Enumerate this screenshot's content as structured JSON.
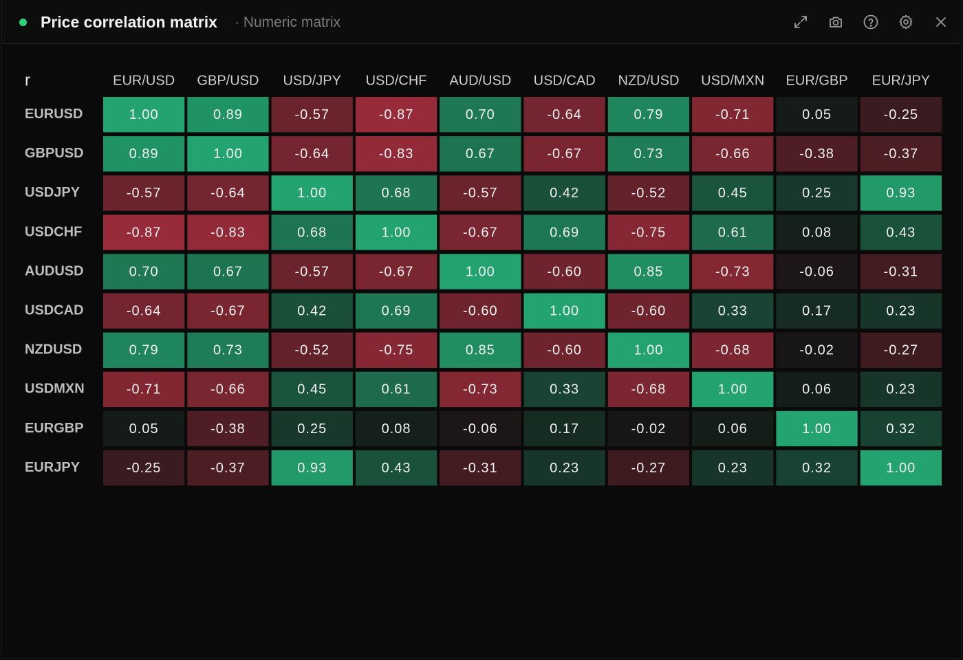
{
  "panel": {
    "title": "Price correlation matrix",
    "subtitle": "· Numeric matrix",
    "status_color": "#2bd47d",
    "toolbar": [
      {
        "icon": "expand-icon"
      },
      {
        "icon": "camera-icon"
      },
      {
        "icon": "help-icon"
      },
      {
        "icon": "gear-icon"
      },
      {
        "icon": "close-icon"
      }
    ]
  },
  "chart_data": {
    "type": "heatmap",
    "corner_label": "r",
    "columns": [
      "EUR/USD",
      "GBP/USD",
      "USD/JPY",
      "USD/CHF",
      "AUD/USD",
      "USD/CAD",
      "NZD/USD",
      "USD/MXN",
      "EUR/GBP",
      "EUR/JPY"
    ],
    "rows": [
      "EURUSD",
      "GBPUSD",
      "USDJPY",
      "USDCHF",
      "AUDUSD",
      "USDCAD",
      "NZDUSD",
      "USDMXN",
      "EURGBP",
      "EURJPY"
    ],
    "values": [
      [
        1.0,
        0.89,
        -0.57,
        -0.87,
        0.7,
        -0.64,
        0.79,
        -0.71,
        0.05,
        -0.25
      ],
      [
        0.89,
        1.0,
        -0.64,
        -0.83,
        0.67,
        -0.67,
        0.73,
        -0.66,
        -0.38,
        -0.37
      ],
      [
        -0.57,
        -0.64,
        1.0,
        0.68,
        -0.57,
        0.42,
        -0.52,
        0.45,
        0.25,
        0.93
      ],
      [
        -0.87,
        -0.83,
        0.68,
        1.0,
        -0.67,
        0.69,
        -0.75,
        0.61,
        0.08,
        0.43
      ],
      [
        0.7,
        0.67,
        -0.57,
        -0.67,
        1.0,
        -0.6,
        0.85,
        -0.73,
        -0.06,
        -0.31
      ],
      [
        -0.64,
        -0.67,
        0.42,
        0.69,
        -0.6,
        1.0,
        -0.6,
        0.33,
        0.17,
        0.23
      ],
      [
        0.79,
        0.73,
        -0.52,
        -0.75,
        0.85,
        -0.6,
        1.0,
        -0.68,
        -0.02,
        -0.27
      ],
      [
        -0.71,
        -0.66,
        0.45,
        0.61,
        -0.73,
        0.33,
        -0.68,
        1.0,
        0.06,
        0.23
      ],
      [
        0.05,
        -0.38,
        0.25,
        0.08,
        -0.06,
        0.17,
        -0.02,
        0.06,
        1.0,
        0.32
      ],
      [
        -0.25,
        -0.37,
        0.93,
        0.43,
        -0.31,
        0.23,
        -0.27,
        0.23,
        0.32,
        1.0
      ]
    ],
    "value_range": [
      -1,
      1
    ],
    "colors": {
      "positive": "#22a36f",
      "negative": "#ac2f3e",
      "neutral": "#141414"
    },
    "grid": false,
    "legend": "none"
  }
}
